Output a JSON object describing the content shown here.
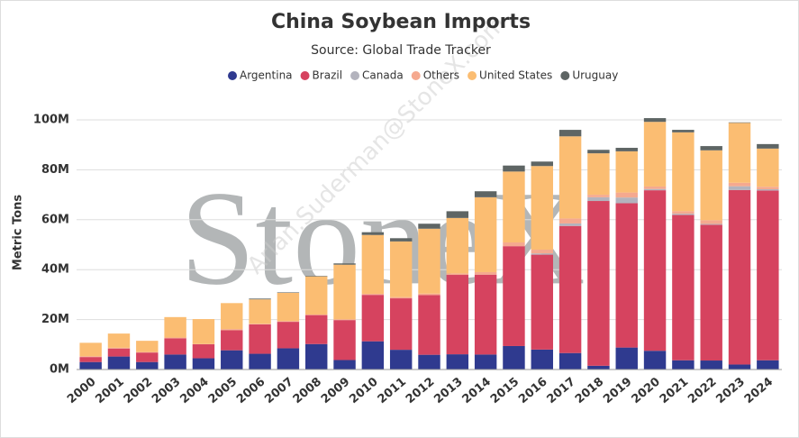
{
  "chart_data": {
    "type": "stacked_bar",
    "title": "China Soybean Imports",
    "subtitle": "Source: Global Trade Tracker",
    "y_label": "Metric Tons",
    "watermark": "StoneX",
    "watermark_email": "Arlan.Suderman@StoneX.com",
    "categories": [
      "2000",
      "2001",
      "2002",
      "2003",
      "2004",
      "2005",
      "2006",
      "2007",
      "2008",
      "2009",
      "2010",
      "2011",
      "2012",
      "2013",
      "2014",
      "2015",
      "2016",
      "2017",
      "2018",
      "2019",
      "2020",
      "2021",
      "2022",
      "2023",
      "2024"
    ],
    "series": [
      {
        "name": "Argentina",
        "color": "#2f3a8f",
        "values": [
          3000000,
          5200000,
          3000000,
          6000000,
          4500000,
          7700000,
          6300000,
          8500000,
          10200000,
          3800000,
          11300000,
          7900000,
          5900000,
          6100000,
          6000000,
          9400000,
          8000000,
          6600000,
          1500000,
          8800000,
          7500000,
          3700000,
          3600000,
          2000000,
          3700000
        ]
      },
      {
        "name": "Brazil",
        "color": "#d6435f",
        "values": [
          2000000,
          3200000,
          3800000,
          6500000,
          5600000,
          8000000,
          11800000,
          10600000,
          11600000,
          16000000,
          18600000,
          20600000,
          23900000,
          31800000,
          32000000,
          40000000,
          38000000,
          50900000,
          66000000,
          57800000,
          64300000,
          58200000,
          54400000,
          69900000,
          68000000
        ]
      },
      {
        "name": "Canada",
        "color": "#b3b3bd",
        "values": [
          0,
          0,
          0,
          0,
          0,
          0,
          0,
          0,
          0,
          0,
          0,
          0,
          0,
          0,
          0,
          0,
          500000,
          1000000,
          1500000,
          2300000,
          500000,
          500000,
          300000,
          1500000,
          500000
        ]
      },
      {
        "name": "Others",
        "color": "#f5a98f",
        "values": [
          300000,
          300000,
          200000,
          300000,
          100000,
          500000,
          200000,
          300000,
          200000,
          300000,
          400000,
          500000,
          600000,
          600000,
          1000000,
          1500000,
          1500000,
          2000000,
          1000000,
          2000000,
          1000000,
          1000000,
          1500000,
          1400000,
          1000000
        ]
      },
      {
        "name": "United States",
        "color": "#fbbd72",
        "values": [
          5400000,
          5700000,
          4500000,
          8200000,
          10000000,
          10400000,
          9800000,
          11300000,
          15300000,
          21900000,
          23600000,
          22300000,
          26000000,
          22200000,
          30000000,
          28400000,
          33500000,
          32900000,
          16600000,
          16500000,
          25900000,
          31600000,
          28000000,
          24000000,
          15300000
        ]
      },
      {
        "name": "Uruguay",
        "color": "#5e6564",
        "values": [
          0,
          0,
          0,
          0,
          0,
          0,
          300000,
          200000,
          200000,
          500000,
          1100000,
          1300000,
          2000000,
          2700000,
          2400000,
          2400000,
          1800000,
          2600000,
          1400000,
          1400000,
          1500000,
          1000000,
          1700000,
          200000,
          1800000
        ]
      }
    ],
    "ylim": [
      0,
      100000000
    ],
    "yticks": [
      {
        "value": 0,
        "label": "0M"
      },
      {
        "value": 20000000,
        "label": "20M"
      },
      {
        "value": 40000000,
        "label": "40M"
      },
      {
        "value": 60000000,
        "label": "60M"
      },
      {
        "value": 80000000,
        "label": "80M"
      },
      {
        "value": 100000000,
        "label": "100M"
      }
    ],
    "grid": true,
    "legend": "top"
  }
}
